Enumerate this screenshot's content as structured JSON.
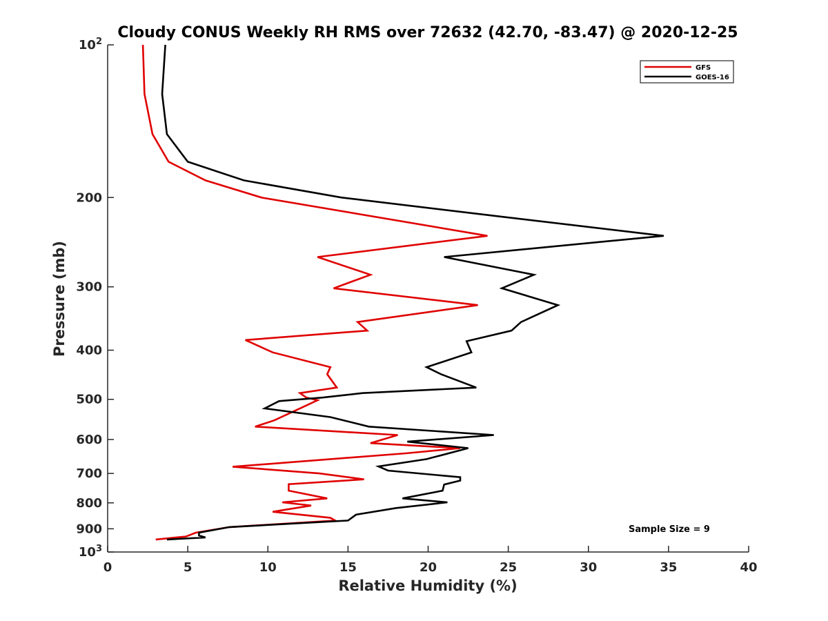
{
  "chart_data": {
    "type": "line",
    "title": "Cloudy CONUS Weekly RH RMS over 72632 (42.70, -83.47) @ 2020-12-25",
    "xlabel": "Relative Humidity (%)",
    "ylabel": "Pressure (mb)",
    "xlim": [
      0,
      40
    ],
    "ylim": [
      100,
      1000
    ],
    "y_scale": "log",
    "y_reversed": true,
    "grid": false,
    "legend_position": "top-right",
    "x_ticks": [
      "0",
      "5",
      "10",
      "15",
      "20",
      "25",
      "30",
      "35",
      "40"
    ],
    "y_ticks": [
      {
        "value": 100,
        "base": "10",
        "exp": "2"
      },
      {
        "value": 200,
        "label": "200"
      },
      {
        "value": 300,
        "label": "300"
      },
      {
        "value": 400,
        "label": "400"
      },
      {
        "value": 500,
        "label": "500"
      },
      {
        "value": 600,
        "label": "600"
      },
      {
        "value": 700,
        "label": "700"
      },
      {
        "value": 800,
        "label": "800"
      },
      {
        "value": 900,
        "label": "900"
      },
      {
        "value": 1000,
        "base": "10",
        "exp": "3"
      }
    ],
    "series": [
      {
        "name": "GFS",
        "color": "#e00000",
        "points": [
          [
            2.2,
            100
          ],
          [
            2.3,
            125
          ],
          [
            2.8,
            150
          ],
          [
            3.8,
            170
          ],
          [
            6.1,
            185
          ],
          [
            9.6,
            200
          ],
          [
            23.7,
            238
          ],
          [
            13.1,
            262
          ],
          [
            16.4,
            284
          ],
          [
            14.1,
            302
          ],
          [
            23.1,
            326
          ],
          [
            15.6,
            352
          ],
          [
            16.2,
            366
          ],
          [
            8.6,
            382
          ],
          [
            10.3,
            404
          ],
          [
            13.9,
            432
          ],
          [
            13.7,
            446
          ],
          [
            14.3,
            474
          ],
          [
            12.0,
            486
          ],
          [
            12.4,
            496
          ],
          [
            13.1,
            502
          ],
          [
            12.0,
            521
          ],
          [
            10.4,
            550
          ],
          [
            9.2,
            566
          ],
          [
            18.1,
            588
          ],
          [
            16.4,
            610
          ],
          [
            22.0,
            624
          ],
          [
            18.6,
            639
          ],
          [
            7.8,
            679
          ],
          [
            13.2,
            700
          ],
          [
            16.0,
            719
          ],
          [
            11.3,
            735
          ],
          [
            11.3,
            757
          ],
          [
            13.7,
            784
          ],
          [
            10.9,
            798
          ],
          [
            12.7,
            810
          ],
          [
            10.3,
            833
          ],
          [
            13.9,
            856
          ],
          [
            14.2,
            867
          ],
          [
            7.6,
            893
          ],
          [
            5.5,
            916
          ],
          [
            4.9,
            932
          ],
          [
            3.0,
            945
          ]
        ]
      },
      {
        "name": "GOES-16",
        "color": "#000000",
        "points": [
          [
            3.6,
            100
          ],
          [
            3.4,
            125
          ],
          [
            3.7,
            150
          ],
          [
            5.0,
            170
          ],
          [
            8.5,
            185
          ],
          [
            14.6,
            200
          ],
          [
            24.5,
            218
          ],
          [
            34.7,
            238
          ],
          [
            21.0,
            262
          ],
          [
            26.6,
            284
          ],
          [
            24.6,
            302
          ],
          [
            28.1,
            326
          ],
          [
            25.8,
            352
          ],
          [
            25.2,
            366
          ],
          [
            22.4,
            384
          ],
          [
            22.7,
            404
          ],
          [
            19.9,
            432
          ],
          [
            20.8,
            446
          ],
          [
            23.0,
            474
          ],
          [
            15.9,
            486
          ],
          [
            13.4,
            496
          ],
          [
            10.7,
            504
          ],
          [
            9.8,
            521
          ],
          [
            13.9,
            542
          ],
          [
            16.3,
            566
          ],
          [
            24.1,
            588
          ],
          [
            18.7,
            606
          ],
          [
            22.5,
            624
          ],
          [
            19.9,
            656
          ],
          [
            16.9,
            678
          ],
          [
            17.5,
            691
          ],
          [
            22.0,
            712
          ],
          [
            22.0,
            723
          ],
          [
            21.0,
            736
          ],
          [
            20.9,
            757
          ],
          [
            18.4,
            784
          ],
          [
            21.2,
            798
          ],
          [
            18.0,
            819
          ],
          [
            15.5,
            844
          ],
          [
            15.0,
            867
          ],
          [
            7.6,
            893
          ],
          [
            5.7,
            916
          ],
          [
            5.7,
            928
          ],
          [
            6.1,
            936
          ],
          [
            3.7,
            945
          ]
        ]
      }
    ],
    "annotations": [
      "Sample Size = 9"
    ]
  }
}
